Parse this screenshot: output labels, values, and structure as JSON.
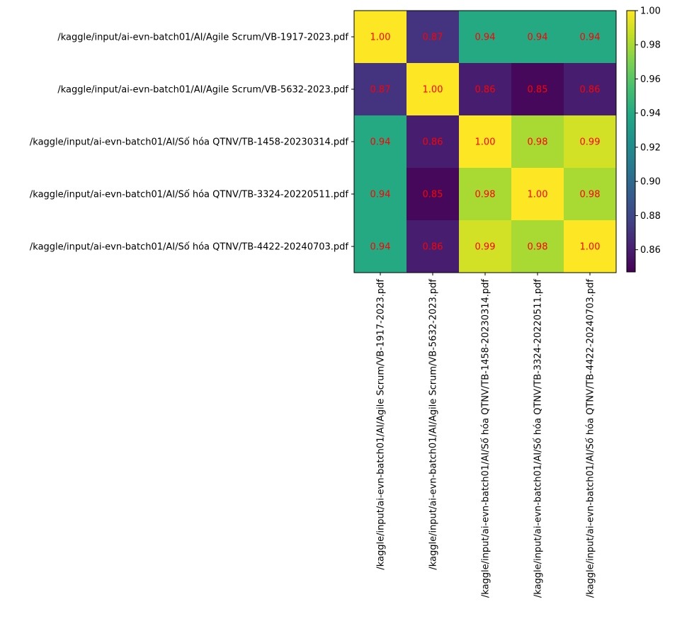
{
  "chart_data": {
    "type": "heatmap",
    "title": "",
    "xlabel": "",
    "ylabel": "",
    "row_labels": [
      "/kaggle/input/ai-evn-batch01/AI/Agile Scrum/VB-1917-2023.pdf",
      "/kaggle/input/ai-evn-batch01/AI/Agile Scrum/VB-5632-2023.pdf",
      "/kaggle/input/ai-evn-batch01/AI/Số hóa QTNV/TB-1458-20230314.pdf",
      "/kaggle/input/ai-evn-batch01/AI/Số hóa QTNV/TB-3324-20220511.pdf",
      "/kaggle/input/ai-evn-batch01/AI/Số hóa QTNV/TB-4422-20240703.pdf"
    ],
    "col_labels": [
      "/kaggle/input/ai-evn-batch01/AI/Agile Scrum/VB-1917-2023.pdf",
      "/kaggle/input/ai-evn-batch01/AI/Agile Scrum/VB-5632-2023.pdf",
      "/kaggle/input/ai-evn-batch01/AI/Số hóa QTNV/TB-1458-20230314.pdf",
      "/kaggle/input/ai-evn-batch01/AI/Số hóa QTNV/TB-3324-20220511.pdf",
      "/kaggle/input/ai-evn-batch01/AI/Số hóa QTNV/TB-4422-20240703.pdf"
    ],
    "values": [
      [
        1.0,
        0.87,
        0.94,
        0.94,
        0.94
      ],
      [
        0.87,
        1.0,
        0.86,
        0.85,
        0.86
      ],
      [
        0.94,
        0.86,
        1.0,
        0.98,
        0.99
      ],
      [
        0.94,
        0.85,
        0.98,
        1.0,
        0.98
      ],
      [
        0.94,
        0.86,
        0.99,
        0.98,
        1.0
      ]
    ],
    "cell_labels": [
      [
        "1.00",
        "0.87",
        "0.94",
        "0.94",
        "0.94"
      ],
      [
        "0.87",
        "1.00",
        "0.86",
        "0.85",
        "0.86"
      ],
      [
        "0.94",
        "0.86",
        "1.00",
        "0.98",
        "0.99"
      ],
      [
        "0.94",
        "0.85",
        "0.98",
        "1.00",
        "0.98"
      ],
      [
        "0.94",
        "0.86",
        "0.99",
        "0.98",
        "1.00"
      ]
    ],
    "colormap": "viridis",
    "color_range": [
      0.847,
      1.0
    ],
    "colorbar": {
      "ticks": [
        0.86,
        0.88,
        0.9,
        0.92,
        0.94,
        0.96,
        0.98,
        1.0
      ],
      "tick_labels": [
        "0.86",
        "0.88",
        "0.90",
        "0.92",
        "0.94",
        "0.96",
        "0.98",
        "1.00"
      ]
    },
    "annotation_color": "#ff0000",
    "grid": false
  }
}
